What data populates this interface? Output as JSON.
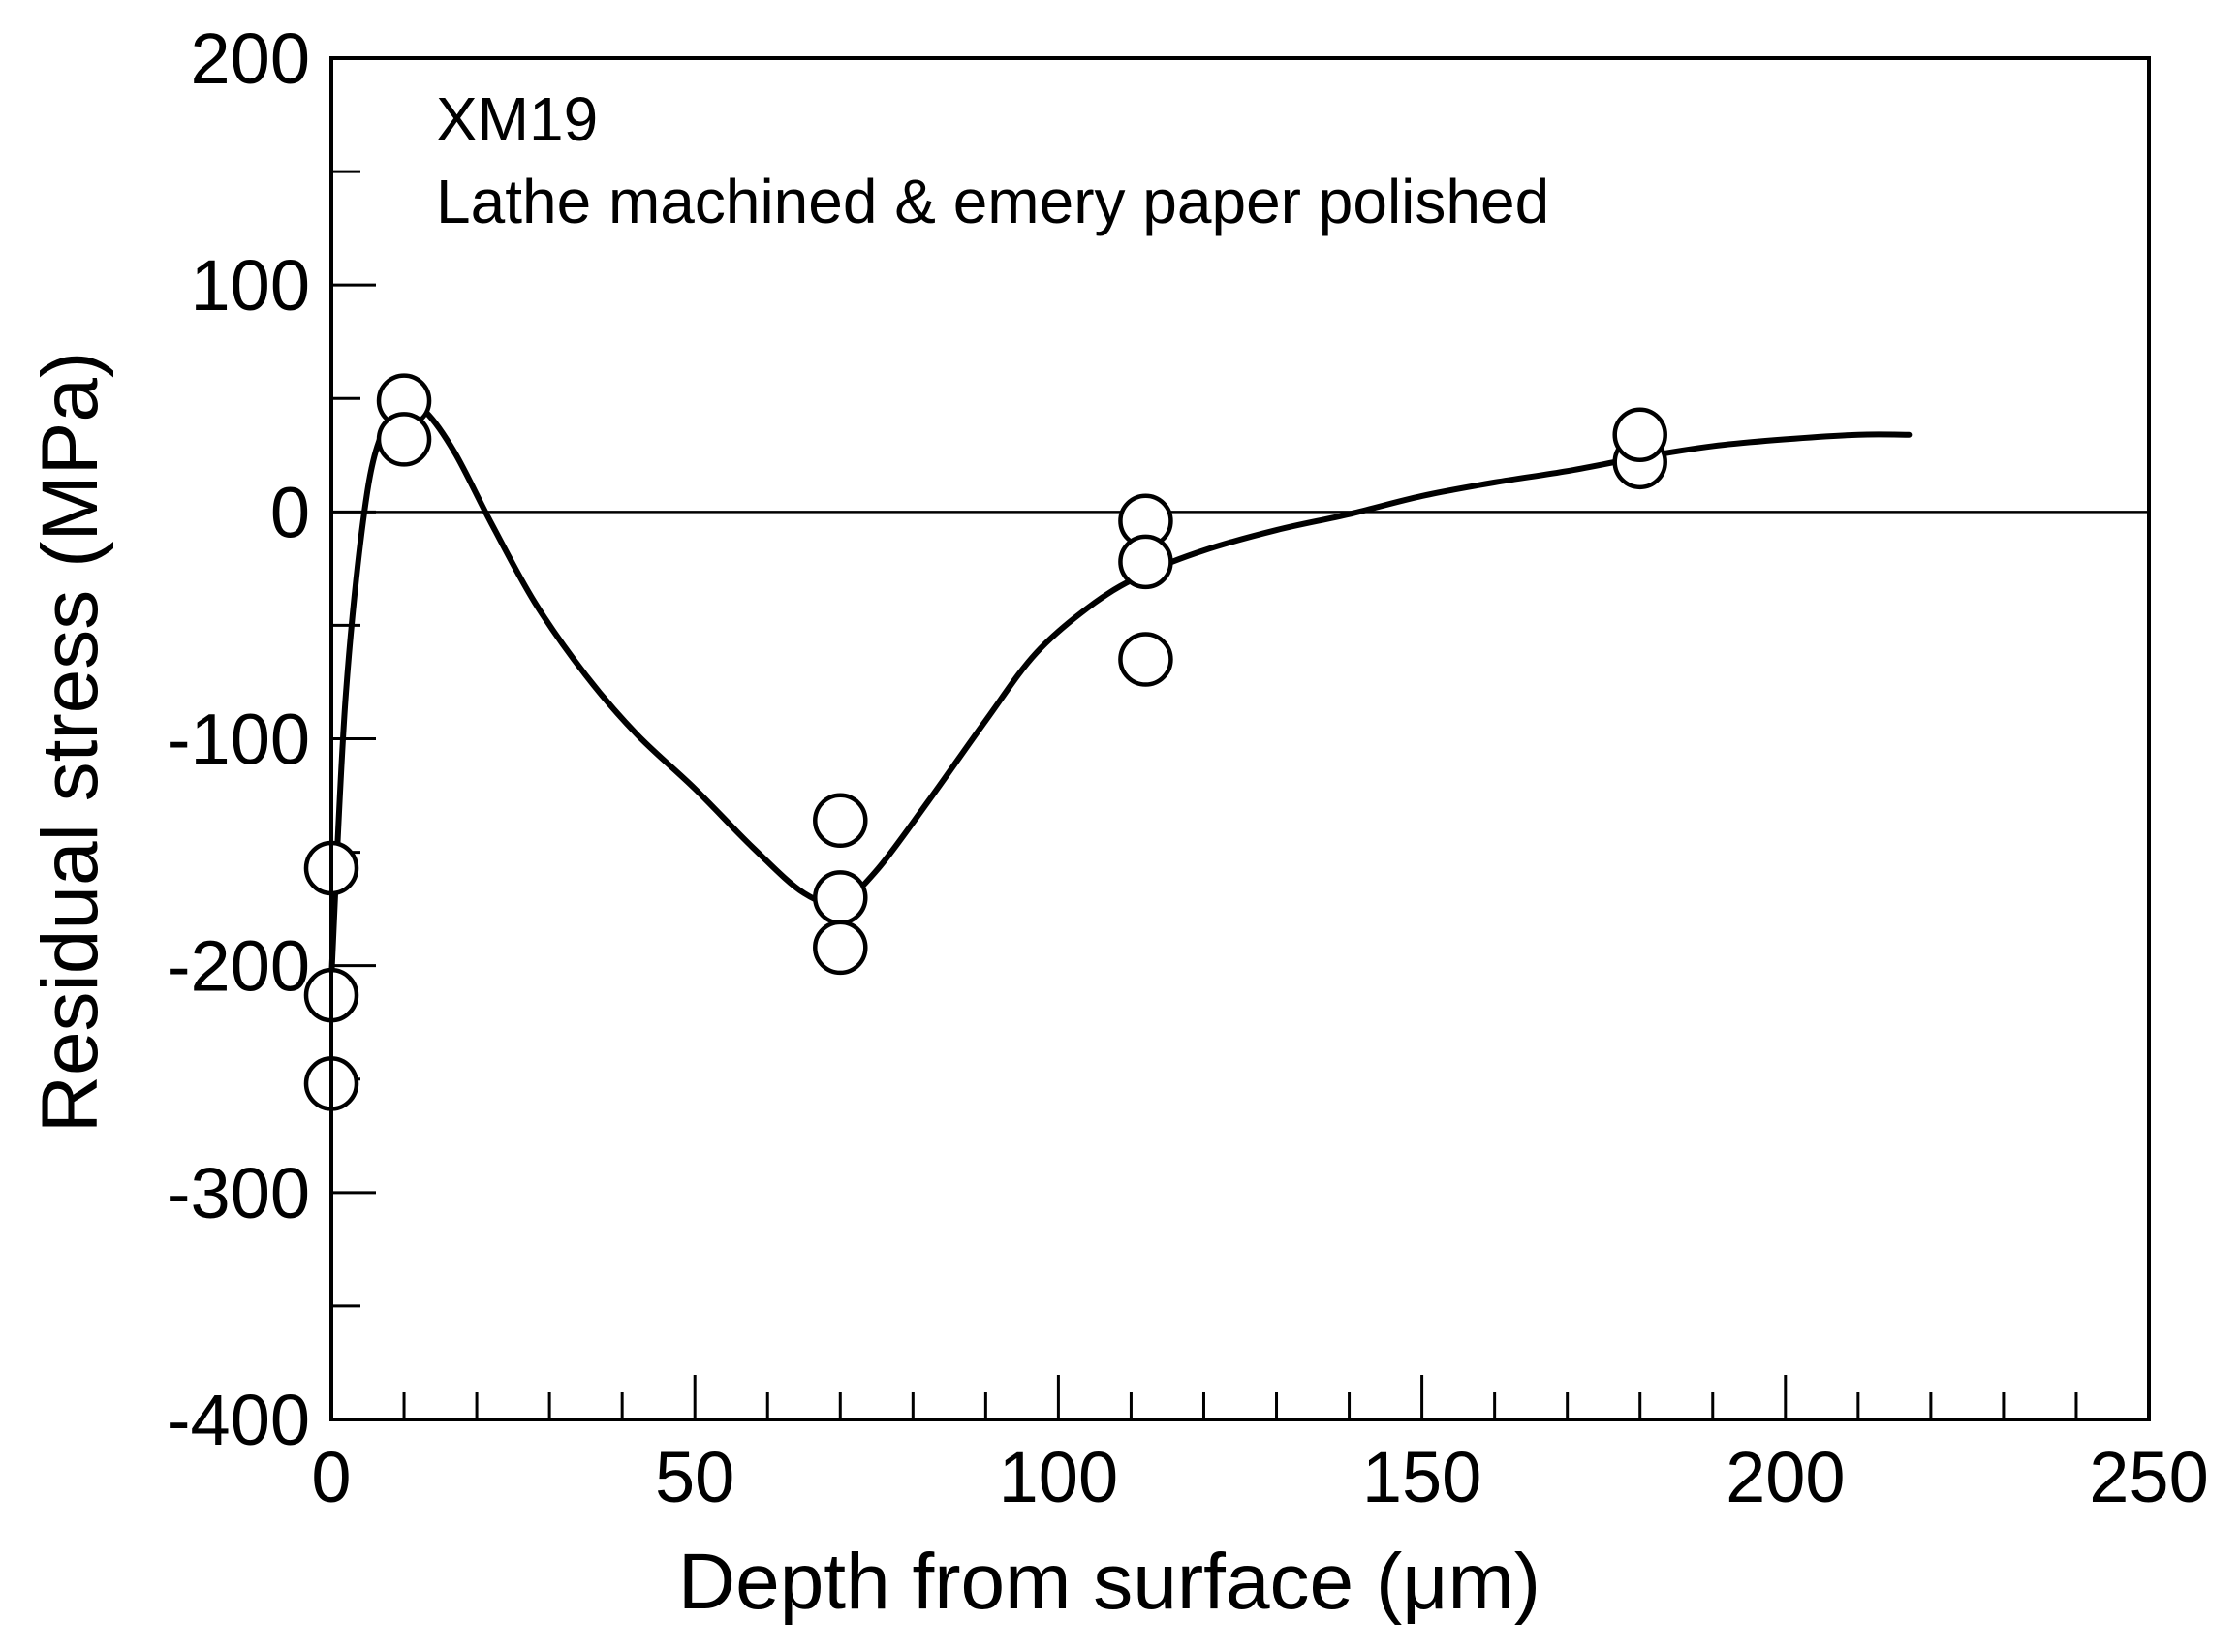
{
  "chart_data": {
    "type": "scatter",
    "title": "",
    "xlabel": "Depth from surface (μm)",
    "ylabel": "Residual stress (MPa)",
    "xlim": [
      0,
      250
    ],
    "ylim": [
      -400,
      200
    ],
    "x_ticks": [
      "0",
      "50",
      "100",
      "150",
      "200",
      "250"
    ],
    "y_ticks": [
      "200",
      "100",
      "0",
      "-100",
      "-200",
      "-300",
      "-400"
    ],
    "annotations": [
      "XM19",
      "Lathe machined & emery paper polished"
    ],
    "grid": false,
    "legend": "none",
    "series": [
      {
        "kind": "points",
        "marker": "open-circle",
        "points": [
          [
            0,
            -157
          ],
          [
            0,
            -213
          ],
          [
            0,
            -252
          ],
          [
            10,
            49
          ],
          [
            10,
            32
          ],
          [
            70,
            -136
          ],
          [
            70,
            -170
          ],
          [
            70,
            -192
          ],
          [
            112,
            -4
          ],
          [
            112,
            -22
          ],
          [
            112,
            -65
          ],
          [
            180,
            22
          ],
          [
            180,
            34
          ]
        ]
      },
      {
        "kind": "fitted-curve",
        "points": [
          [
            0,
            -206
          ],
          [
            2,
            -80
          ],
          [
            5,
            10
          ],
          [
            8,
            42
          ],
          [
            10,
            48
          ],
          [
            13,
            44
          ],
          [
            17,
            26
          ],
          [
            22,
            -5
          ],
          [
            28,
            -40
          ],
          [
            35,
            -72
          ],
          [
            42,
            -98
          ],
          [
            50,
            -122
          ],
          [
            58,
            -148
          ],
          [
            65,
            -168
          ],
          [
            70,
            -172
          ],
          [
            75,
            -158
          ],
          [
            82,
            -128
          ],
          [
            90,
            -92
          ],
          [
            97,
            -62
          ],
          [
            105,
            -40
          ],
          [
            112,
            -27
          ],
          [
            120,
            -17
          ],
          [
            130,
            -8
          ],
          [
            140,
            -1
          ],
          [
            150,
            7
          ],
          [
            160,
            13
          ],
          [
            170,
            18
          ],
          [
            180,
            24
          ],
          [
            190,
            29
          ],
          [
            200,
            32
          ],
          [
            210,
            34
          ],
          [
            217,
            34
          ]
        ]
      }
    ]
  }
}
